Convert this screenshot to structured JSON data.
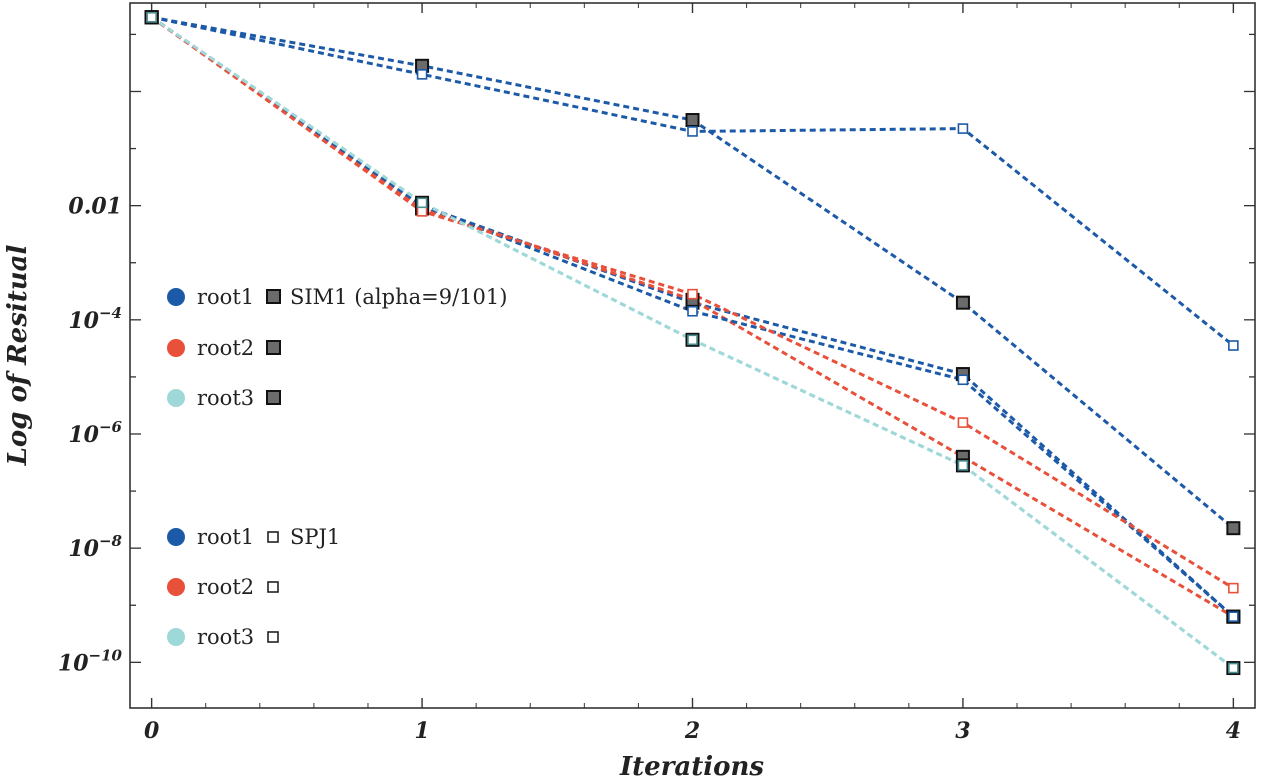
{
  "chart_data": {
    "type": "line",
    "title": "",
    "xlabel": "Iterations",
    "ylabel": "Log of Resitual",
    "x": [
      0,
      1,
      2,
      3,
      4
    ],
    "xlim": [
      -0.08,
      4.08
    ],
    "ylim_log10": [
      -10.8,
      1.55
    ],
    "x_ticks": [
      {
        "value": 0,
        "label": "0"
      },
      {
        "value": 1,
        "label": "1"
      },
      {
        "value": 2,
        "label": "2"
      },
      {
        "value": 3,
        "label": "3"
      },
      {
        "value": 4,
        "label": "4"
      }
    ],
    "y_ticks": [
      {
        "exp": -2,
        "base": "0.01",
        "sup": ""
      },
      {
        "exp": -4,
        "base": "10",
        "sup": "−4"
      },
      {
        "exp": -6,
        "base": "10",
        "sup": "−6"
      },
      {
        "exp": -8,
        "base": "10",
        "sup": "−8"
      },
      {
        "exp": -10,
        "base": "10",
        "sup": "−10"
      }
    ],
    "series": [
      {
        "name": "root1 SIM1 (alpha=9/101)",
        "method": "SIM1",
        "root": "root1",
        "color": "#1c5aa8",
        "marker": "filled-square",
        "log10_values": [
          1.3,
          0.45,
          -0.5,
          -3.7,
          -7.65
        ]
      },
      {
        "name": "root1 SIM1 (alpha=9/101)",
        "method": "SIM1",
        "root": "root1",
        "color": "#1c5aa8",
        "marker": "filled-square",
        "log10_values": [
          1.3,
          -2.0,
          -3.7,
          -4.95,
          -9.2
        ]
      },
      {
        "name": "root2 SIM1",
        "method": "SIM1",
        "root": "root2",
        "color": "#e8503a",
        "marker": "filled-square",
        "log10_values": [
          1.3,
          -2.05,
          -3.65,
          -6.4,
          -9.2
        ]
      },
      {
        "name": "root3 SIM1",
        "method": "SIM1",
        "root": "root3",
        "color": "#9ed8d8",
        "marker": "filled-square",
        "log10_values": [
          1.3,
          -1.95,
          -4.35,
          -6.55,
          -10.1
        ]
      },
      {
        "name": "root1 SPJ1",
        "method": "SPJ1",
        "root": "root1",
        "color": "#1c5aa8",
        "marker": "open-square",
        "log10_values": [
          1.3,
          0.3,
          -0.7,
          -0.65,
          -4.45
        ]
      },
      {
        "name": "root1 SPJ1",
        "method": "SPJ1",
        "root": "root1",
        "color": "#1c5aa8",
        "marker": "open-square",
        "log10_values": [
          1.3,
          -2.0,
          -3.85,
          -5.05,
          -9.2
        ]
      },
      {
        "name": "root2 SPJ1",
        "method": "SPJ1",
        "root": "root2",
        "color": "#e8503a",
        "marker": "open-square",
        "log10_values": [
          1.3,
          -2.1,
          -3.55,
          -5.8,
          -8.7
        ]
      },
      {
        "name": "root3 SPJ1",
        "method": "SPJ1",
        "root": "root3",
        "color": "#9ed8d8",
        "marker": "open-square",
        "log10_values": [
          1.3,
          -1.95,
          -4.35,
          -6.55,
          -10.1
        ]
      }
    ],
    "legend": {
      "placement": "left-center",
      "groups": [
        {
          "method_label": "SIM1 (alpha=9/101)",
          "marker": "filled-square",
          "entries": [
            {
              "label": "root1",
              "color": "#1c5aa8"
            },
            {
              "label": "root2",
              "color": "#e8503a"
            },
            {
              "label": "root3",
              "color": "#9ed8d8"
            }
          ]
        },
        {
          "method_label": "SPJ1",
          "marker": "open-square",
          "entries": [
            {
              "label": "root1",
              "color": "#1c5aa8"
            },
            {
              "label": "root2",
              "color": "#e8503a"
            },
            {
              "label": "root3",
              "color": "#9ed8d8"
            }
          ]
        }
      ]
    }
  }
}
